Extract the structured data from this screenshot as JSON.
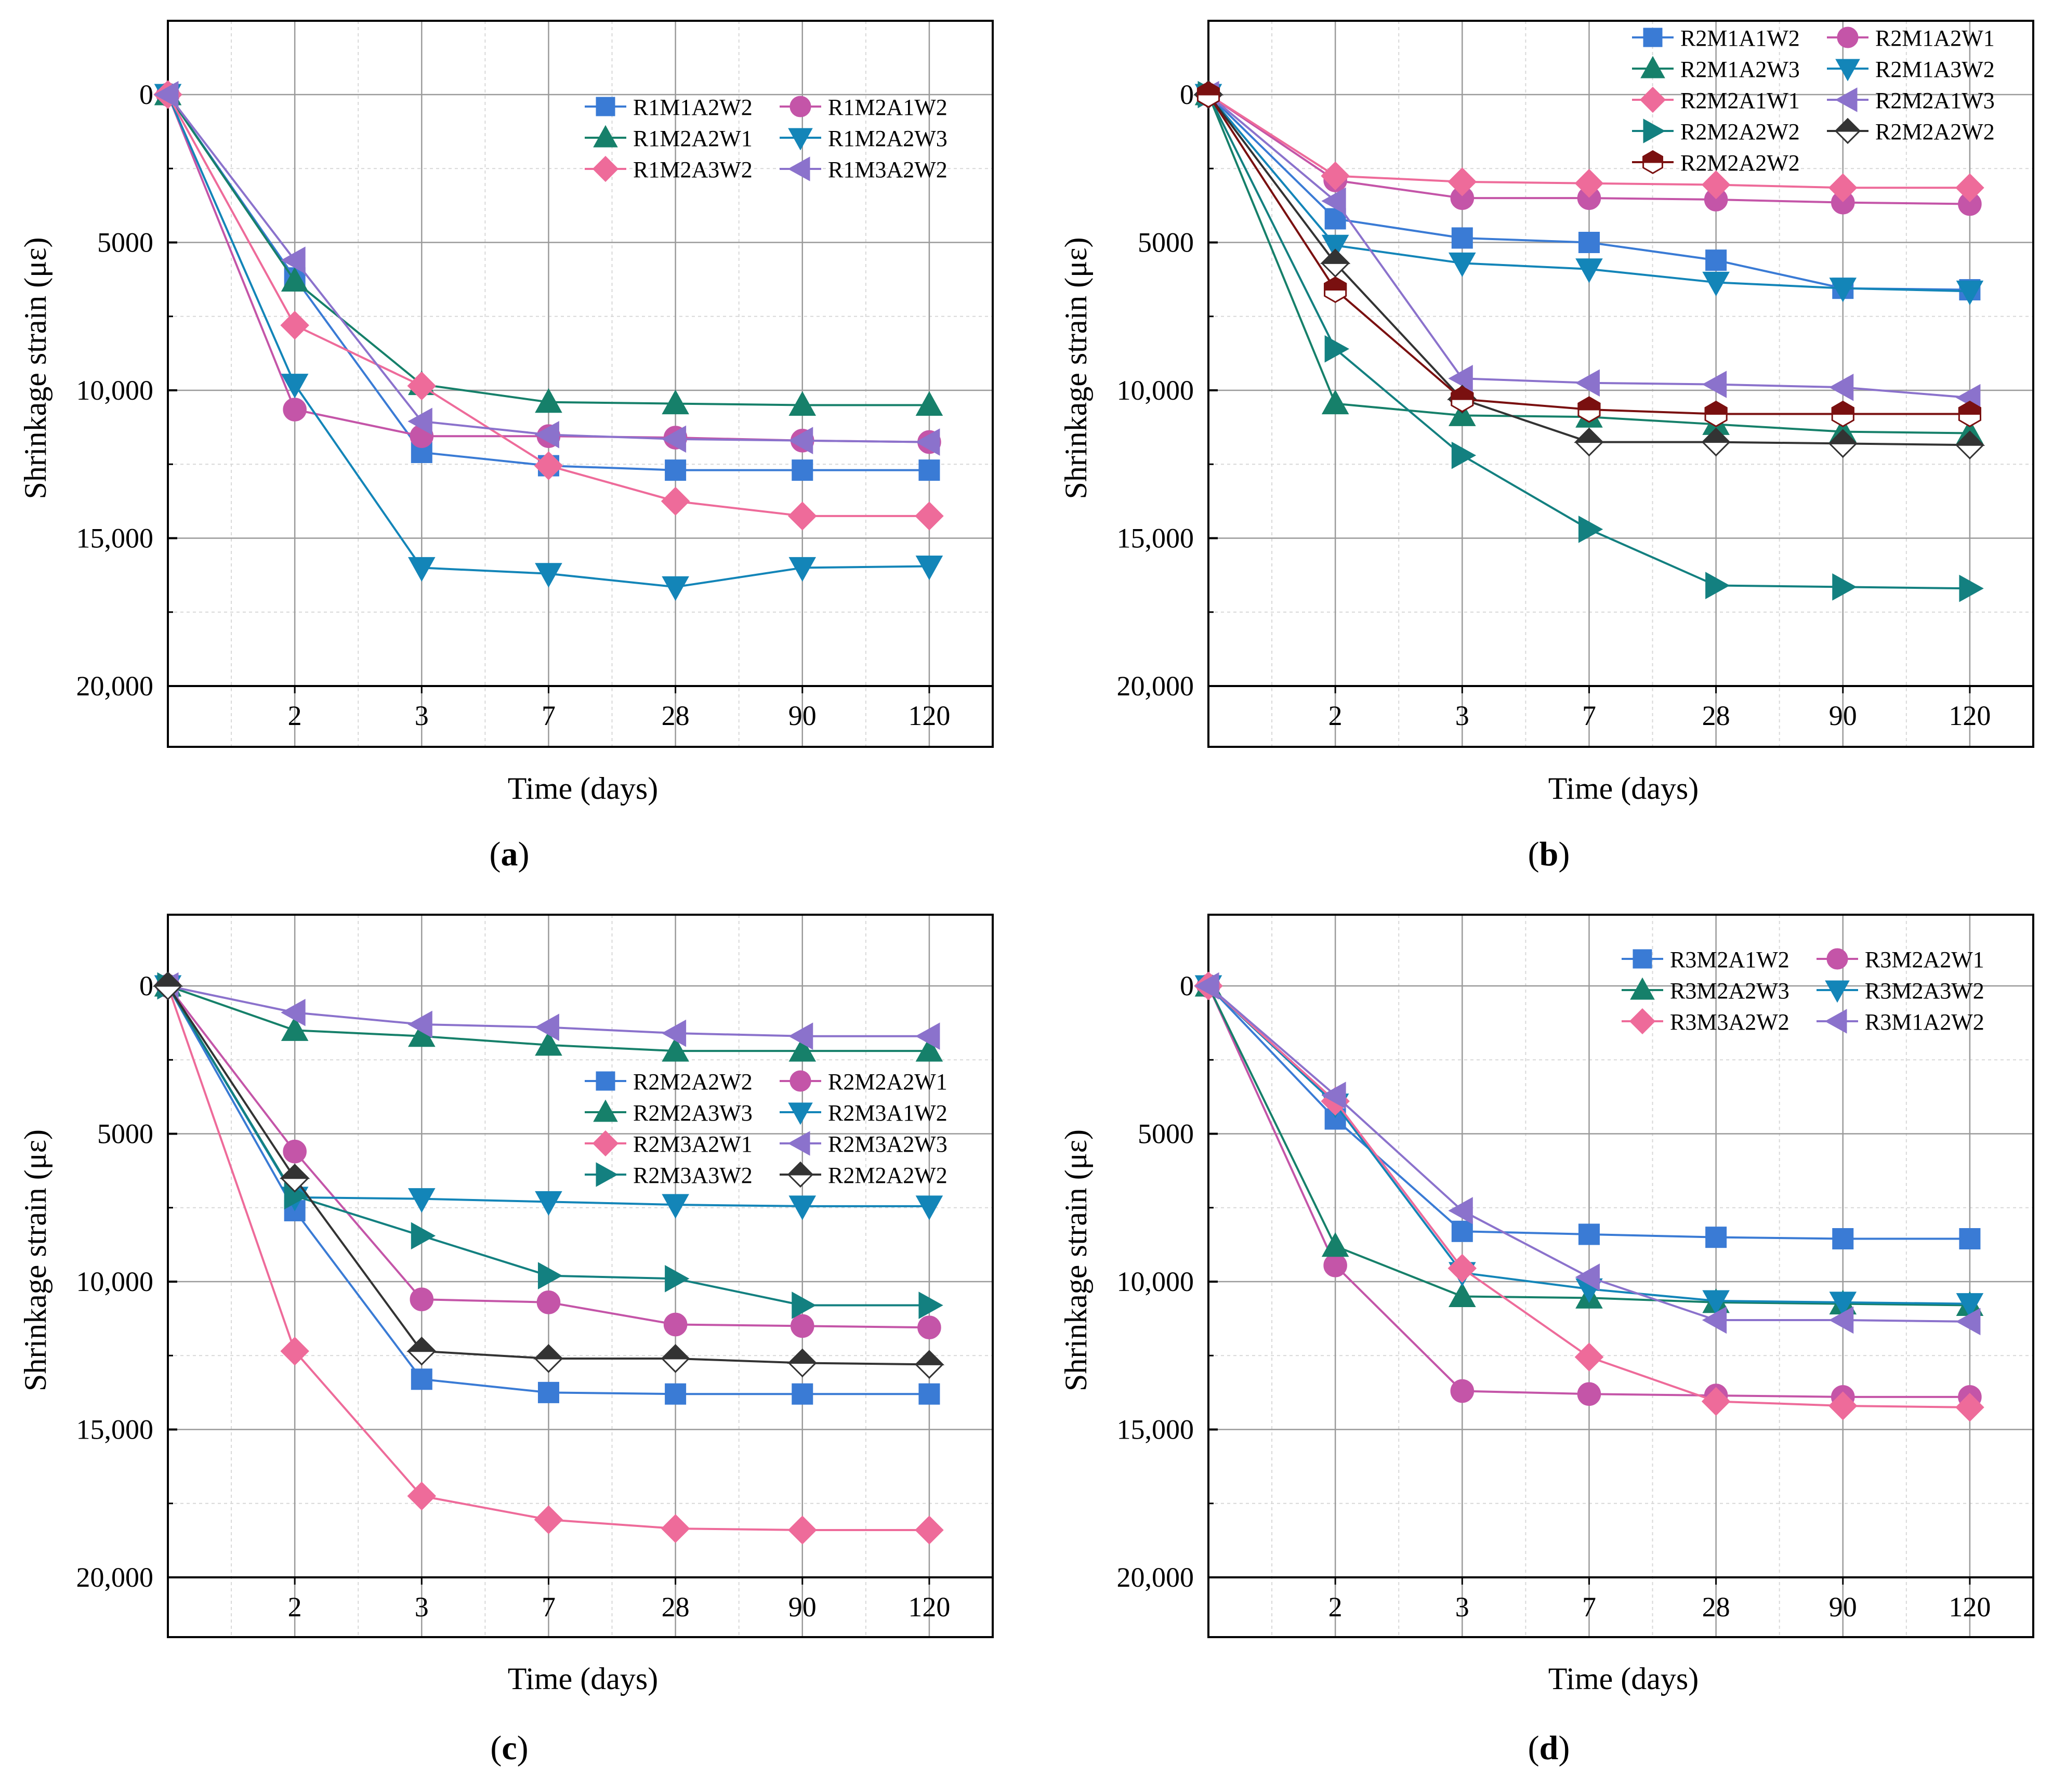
{
  "figure": {
    "axis_common": {
      "xlabel": "Time (days)",
      "ylabel": "Shrinkage strain (με)",
      "ytick_labels": [
        "0",
        "5000",
        "10,000",
        "15,000",
        "20,000"
      ],
      "ytick_values": [
        0,
        5000,
        10000,
        15000,
        20000
      ],
      "xtick_labels": [
        "2",
        "3",
        "7",
        "28",
        "90",
        "120"
      ],
      "ylim": [
        -2500,
        22000
      ]
    }
  },
  "chart_data": [
    {
      "panel": "a",
      "caption": "(a)",
      "type": "line",
      "title": "",
      "xlabel": "Time (days)",
      "ylabel": "Shrinkage strain (με)",
      "categories": [
        "0",
        "2",
        "3",
        "7",
        "28",
        "90",
        "120"
      ],
      "ylim": [
        -2500,
        22000
      ],
      "y_inverted": true,
      "legend": "top-right",
      "series": [
        {
          "name": "R1M1A2W2",
          "color": "#3a7bd5",
          "marker": "square",
          "values": [
            0,
            6200,
            12100,
            12550,
            12700,
            12700,
            12700
          ]
        },
        {
          "name": "R1M2A1W2",
          "color": "#c455a8",
          "marker": "circle",
          "values": [
            0,
            10650,
            11550,
            11550,
            11600,
            11700,
            11750
          ]
        },
        {
          "name": "R1M2A2W1",
          "color": "#16806a",
          "marker": "triangle-up",
          "values": [
            0,
            6300,
            9800,
            10400,
            10450,
            10500,
            10500
          ]
        },
        {
          "name": "R1M2A2W3",
          "color": "#1385b8",
          "marker": "triangle-down",
          "values": [
            0,
            9800,
            16000,
            16200,
            16650,
            16000,
            15950
          ]
        },
        {
          "name": "R1M2A3W2",
          "color": "#ee6b9a",
          "marker": "diamond",
          "values": [
            0,
            7800,
            9850,
            12550,
            13750,
            14250,
            14250
          ]
        },
        {
          "name": "R1M3A2W2",
          "color": "#8b72cc",
          "marker": "triangle-left",
          "values": [
            0,
            5600,
            11050,
            11500,
            11650,
            11700,
            11750
          ]
        }
      ]
    },
    {
      "panel": "b",
      "caption": "(b)",
      "type": "line",
      "title": "",
      "xlabel": "Time (days)",
      "ylabel": "Shrinkage strain (με)",
      "categories": [
        "0",
        "2",
        "3",
        "7",
        "28",
        "90",
        "120"
      ],
      "ylim": [
        -2500,
        22000
      ],
      "y_inverted": true,
      "legend": "top-right",
      "series": [
        {
          "name": "R2M1A1W2",
          "color": "#3a7bd5",
          "marker": "square",
          "values": [
            0,
            4200,
            4850,
            5000,
            5600,
            6550,
            6600
          ]
        },
        {
          "name": "R2M1A2W1",
          "color": "#c455a8",
          "marker": "circle",
          "values": [
            0,
            2900,
            3500,
            3500,
            3550,
            3650,
            3700
          ]
        },
        {
          "name": "R2M1A2W3",
          "color": "#16806a",
          "marker": "triangle-up",
          "values": [
            0,
            10450,
            10850,
            10900,
            11150,
            11400,
            11450
          ]
        },
        {
          "name": "R2M1A3W2",
          "color": "#1385b8",
          "marker": "triangle-down",
          "values": [
            0,
            5100,
            5700,
            5900,
            6350,
            6550,
            6650
          ]
        },
        {
          "name": "R2M2A1W1",
          "color": "#ee6b9a",
          "marker": "diamond",
          "values": [
            0,
            2750,
            2950,
            3000,
            3050,
            3150,
            3150
          ]
        },
        {
          "name": "R2M2A1W3",
          "color": "#8b72cc",
          "marker": "triangle-left",
          "values": [
            0,
            3600,
            9600,
            9750,
            9800,
            9900,
            10250
          ]
        },
        {
          "name": "R2M2A2W2",
          "color": "#138080",
          "marker": "triangle-right",
          "values": [
            0,
            8600,
            12200,
            14700,
            16600,
            16650,
            16700
          ]
        },
        {
          "name": "R2M2A2W2",
          "color": "#333333",
          "marker": "diamond-half",
          "values": [
            0,
            5700,
            10300,
            11750,
            11750,
            11800,
            11850
          ]
        },
        {
          "name": "R2M2A2W2",
          "color": "#7a1010",
          "marker": "hexagon-half",
          "values": [
            0,
            6600,
            10300,
            10650,
            10800,
            10800,
            10800
          ]
        }
      ]
    },
    {
      "panel": "c",
      "caption": "(c)",
      "type": "line",
      "title": "",
      "xlabel": "Time (days)",
      "ylabel": "Shrinkage strain (με)",
      "categories": [
        "0",
        "2",
        "3",
        "7",
        "28",
        "90",
        "120"
      ],
      "ylim": [
        -2500,
        22000
      ],
      "y_inverted": true,
      "legend": "middle-right",
      "series": [
        {
          "name": "R2M2A2W2",
          "color": "#3a7bd5",
          "marker": "square",
          "values": [
            0,
            7600,
            13300,
            13750,
            13800,
            13800,
            13800
          ]
        },
        {
          "name": "R2M2A2W1",
          "color": "#c455a8",
          "marker": "circle",
          "values": [
            0,
            5600,
            10600,
            10700,
            11450,
            11500,
            11550
          ]
        },
        {
          "name": "R2M2A3W3",
          "color": "#16806a",
          "marker": "triangle-up",
          "values": [
            0,
            1500,
            1700,
            2000,
            2200,
            2200,
            2200
          ]
        },
        {
          "name": "R2M3A1W2",
          "color": "#1385b8",
          "marker": "triangle-down",
          "values": [
            0,
            7150,
            7200,
            7300,
            7400,
            7450,
            7450
          ]
        },
        {
          "name": "R2M3A2W1",
          "color": "#ee6b9a",
          "marker": "diamond",
          "values": [
            0,
            12350,
            17250,
            18050,
            18350,
            18400,
            18400
          ]
        },
        {
          "name": "R2M3A2W3",
          "color": "#8b72cc",
          "marker": "triangle-left",
          "values": [
            0,
            900,
            1300,
            1400,
            1600,
            1700,
            1700
          ]
        },
        {
          "name": "R2M3A3W2",
          "color": "#138080",
          "marker": "triangle-right",
          "values": [
            0,
            7100,
            8450,
            9800,
            9900,
            10800,
            10800
          ]
        },
        {
          "name": "R2M2A2W2",
          "color": "#333333",
          "marker": "diamond-half",
          "values": [
            0,
            6500,
            12350,
            12600,
            12600,
            12750,
            12800
          ]
        }
      ]
    },
    {
      "panel": "d",
      "caption": "(d)",
      "type": "line",
      "title": "",
      "xlabel": "Time (days)",
      "ylabel": "Shrinkage strain (με)",
      "categories": [
        "0",
        "2",
        "3",
        "7",
        "28",
        "90",
        "120"
      ],
      "ylim": [
        -2500,
        22000
      ],
      "y_inverted": true,
      "legend": "top-right",
      "series": [
        {
          "name": "R3M2A1W2",
          "color": "#3a7bd5",
          "marker": "square",
          "values": [
            0,
            4500,
            8300,
            8400,
            8500,
            8550,
            8550
          ]
        },
        {
          "name": "R3M2A2W1",
          "color": "#c455a8",
          "marker": "circle",
          "values": [
            0,
            9450,
            13700,
            13800,
            13850,
            13900,
            13900
          ]
        },
        {
          "name": "R3M2A2W3",
          "color": "#16806a",
          "marker": "triangle-up",
          "values": [
            0,
            8800,
            10500,
            10550,
            10700,
            10750,
            10800
          ]
        },
        {
          "name": "R3M2A3W2",
          "color": "#1385b8",
          "marker": "triangle-down",
          "values": [
            0,
            4000,
            9700,
            10250,
            10650,
            10700,
            10750
          ]
        },
        {
          "name": "R3M3A2W2",
          "color": "#ee6b9a",
          "marker": "diamond",
          "values": [
            0,
            3900,
            9550,
            12550,
            14050,
            14200,
            14250
          ]
        },
        {
          "name": "R3M1A2W2",
          "color": "#8b72cc",
          "marker": "triangle-left",
          "values": [
            0,
            3700,
            7600,
            9850,
            11300,
            11300,
            11350
          ]
        }
      ]
    }
  ]
}
